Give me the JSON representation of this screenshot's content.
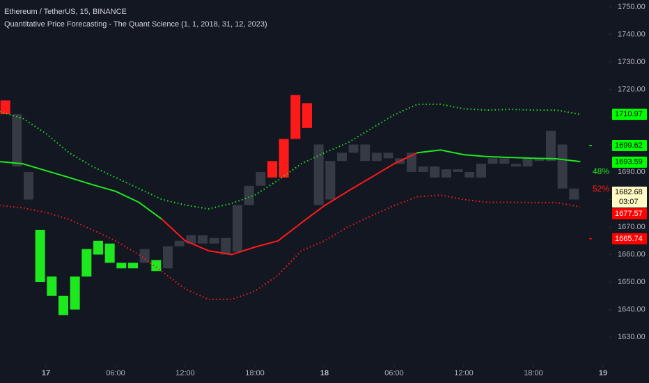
{
  "chart_data": {
    "type": "candlestick",
    "title": "Ethereum / TetherUS, 15, BINANCE",
    "subtitle": "Quantitative Price Forecasting - The Quant Science (1, 1, 2018, 31, 12, 2023)",
    "xlim": [
      -3.96,
      48.54
    ],
    "ylim": [
      1620.9,
      1752.53
    ],
    "xticks": [
      {
        "value": 0,
        "label": "17"
      },
      {
        "value": 6,
        "label": "06:00"
      },
      {
        "value": 12,
        "label": "12:00"
      },
      {
        "value": 18,
        "label": "18:00"
      },
      {
        "value": 24,
        "label": "18"
      },
      {
        "value": 30,
        "label": "06:00"
      },
      {
        "value": 36,
        "label": "12:00"
      },
      {
        "value": 42,
        "label": "18:00"
      },
      {
        "value": 48,
        "label": "19"
      }
    ],
    "yticks": [
      {
        "value": 1630,
        "label": "1630.00"
      },
      {
        "value": 1640,
        "label": "1640.00"
      },
      {
        "value": 1650,
        "label": "1650.00"
      },
      {
        "value": 1660,
        "label": "1660.00"
      },
      {
        "value": 1670,
        "label": "1670.00"
      },
      {
        "value": 1680,
        "label": "1680.00"
      },
      {
        "value": 1690,
        "label": "1690.00"
      },
      {
        "value": 1700,
        "label": "1700.00"
      },
      {
        "value": 1710,
        "label": "1710.00"
      },
      {
        "value": 1720,
        "label": "1720.00"
      },
      {
        "value": 1730,
        "label": "1730.00"
      },
      {
        "value": 1740,
        "label": "1740.00"
      },
      {
        "value": 1750,
        "label": "1750.00"
      }
    ],
    "candles": [
      {
        "x": -3.5,
        "o": 1716,
        "c": 1711,
        "color": "#ff1a1a"
      },
      {
        "x": -2.5,
        "o": 1711,
        "c": 1692,
        "color": "#363a45"
      },
      {
        "x": -1.5,
        "o": 1690,
        "c": 1680,
        "color": "#363a45"
      },
      {
        "x": -0.5,
        "o": 1669,
        "c": 1650,
        "color": "#1ee81e"
      },
      {
        "x": 0.5,
        "o": 1652,
        "c": 1645,
        "color": "#1ee81e"
      },
      {
        "x": 1.5,
        "o": 1645,
        "c": 1638,
        "color": "#1ee81e"
      },
      {
        "x": 2.5,
        "o": 1640,
        "c": 1652,
        "color": "#1ee81e"
      },
      {
        "x": 3.5,
        "o": 1652,
        "c": 1662,
        "color": "#1ee81e"
      },
      {
        "x": 4.5,
        "o": 1660,
        "c": 1665,
        "color": "#1ee81e"
      },
      {
        "x": 5.5,
        "o": 1664,
        "c": 1657,
        "color": "#1ee81e"
      },
      {
        "x": 6.5,
        "o": 1657,
        "c": 1655,
        "color": "#1ee81e"
      },
      {
        "x": 7.5,
        "o": 1655,
        "c": 1657,
        "color": "#1ee81e"
      },
      {
        "x": 8.5,
        "o": 1657,
        "c": 1662,
        "color": "#363a45"
      },
      {
        "x": 9.5,
        "o": 1658,
        "c": 1654,
        "color": "#1ee81e"
      },
      {
        "x": 10.5,
        "o": 1655,
        "c": 1663,
        "color": "#363a45"
      },
      {
        "x": 11.5,
        "o": 1663,
        "c": 1665,
        "color": "#363a45"
      },
      {
        "x": 12.5,
        "o": 1664,
        "c": 1667,
        "color": "#363a45"
      },
      {
        "x": 13.5,
        "o": 1667,
        "c": 1664,
        "color": "#363a45"
      },
      {
        "x": 14.5,
        "o": 1664,
        "c": 1666,
        "color": "#363a45"
      },
      {
        "x": 15.5,
        "o": 1666,
        "c": 1660,
        "color": "#363a45"
      },
      {
        "x": 16.5,
        "o": 1661,
        "c": 1678,
        "color": "#363a45"
      },
      {
        "x": 17.5,
        "o": 1678,
        "c": 1685,
        "color": "#363a45"
      },
      {
        "x": 18.5,
        "o": 1685,
        "c": 1690,
        "color": "#363a45"
      },
      {
        "x": 19.5,
        "o": 1694,
        "c": 1688,
        "color": "#ff1a1a"
      },
      {
        "x": 20.5,
        "o": 1688,
        "c": 1702,
        "color": "#ff1a1a"
      },
      {
        "x": 21.5,
        "o": 1702,
        "c": 1718,
        "color": "#ff1a1a"
      },
      {
        "x": 22.5,
        "o": 1715,
        "c": 1706,
        "color": "#ff1a1a"
      },
      {
        "x": 23.5,
        "o": 1700,
        "c": 1678,
        "color": "#363a45"
      },
      {
        "x": 24.5,
        "o": 1680,
        "c": 1694,
        "color": "#363a45"
      },
      {
        "x": 25.5,
        "o": 1694,
        "c": 1697,
        "color": "#363a45"
      },
      {
        "x": 26.5,
        "o": 1697,
        "c": 1700,
        "color": "#363a45"
      },
      {
        "x": 27.5,
        "o": 1700,
        "c": 1694,
        "color": "#363a45"
      },
      {
        "x": 28.5,
        "o": 1694,
        "c": 1697,
        "color": "#363a45"
      },
      {
        "x": 29.5,
        "o": 1697,
        "c": 1695,
        "color": "#363a45"
      },
      {
        "x": 30.5,
        "o": 1695,
        "c": 1693,
        "color": "#363a45"
      },
      {
        "x": 31.5,
        "o": 1697,
        "c": 1690,
        "color": "#363a45"
      },
      {
        "x": 32.5,
        "o": 1690,
        "c": 1692,
        "color": "#363a45"
      },
      {
        "x": 33.5,
        "o": 1692,
        "c": 1688,
        "color": "#363a45"
      },
      {
        "x": 34.5,
        "o": 1688,
        "c": 1691,
        "color": "#363a45"
      },
      {
        "x": 35.5,
        "o": 1691,
        "c": 1690,
        "color": "#363a45"
      },
      {
        "x": 36.5,
        "o": 1690,
        "c": 1688,
        "color": "#363a45"
      },
      {
        "x": 37.5,
        "o": 1688,
        "c": 1693,
        "color": "#363a45"
      },
      {
        "x": 38.5,
        "o": 1693,
        "c": 1695,
        "color": "#363a45"
      },
      {
        "x": 39.5,
        "o": 1695,
        "c": 1693,
        "color": "#363a45"
      },
      {
        "x": 40.5,
        "o": 1693,
        "c": 1692,
        "color": "#363a45"
      },
      {
        "x": 41.5,
        "o": 1692,
        "c": 1695,
        "color": "#363a45"
      },
      {
        "x": 42.5,
        "o": 1695,
        "c": 1694,
        "color": "#363a45"
      },
      {
        "x": 43.5,
        "o": 1694,
        "c": 1705,
        "color": "#363a45"
      },
      {
        "x": 44.5,
        "o": 1700,
        "c": 1684,
        "color": "#363a45"
      },
      {
        "x": 45.5,
        "o": 1684,
        "c": 1680,
        "color": "#363a45"
      }
    ],
    "x": [
      -4,
      -2,
      0,
      2,
      4,
      6,
      8,
      10,
      12,
      14,
      16,
      18,
      20,
      22,
      24,
      26,
      28,
      30,
      32,
      34,
      36,
      38,
      40,
      42,
      44,
      46
    ],
    "series": [
      {
        "color": "#1ee81e",
        "style": "dotted",
        "values": [
          1712,
          1709.5,
          1704,
          1697,
          1692,
          1688,
          1684,
          1680,
          1678,
          1676.6,
          1678.6,
          1681.6,
          1687,
          1693,
          1697,
          1700.6,
          1705.7,
          1710.8,
          1714.6,
          1714.6,
          1713,
          1712.5,
          1712.8,
          1712.5,
          1712.5,
          1711
        ]
      },
      {
        "color": "#1ee81e",
        "style": "solid",
        "segment_colors": [
          "#1ee81e",
          "#1ee81e",
          "#1ee81e",
          "#1ee81e",
          "#1ee81e",
          "#1ee81e",
          "#1ee81e",
          "#ff1a1a",
          "#ff1a1a",
          "#ff1a1a",
          "#ff1a1a",
          "#ff1a1a",
          "#ff1a1a",
          "#ff1a1a",
          "#ff1a1a",
          "#ff1a1a",
          "#ff1a1a",
          "#ff1a1a",
          "#1ee81e",
          "#1ee81e",
          "#1ee81e",
          "#1ee81e",
          "#1ee81e",
          "#1ee81e",
          "#1ee81e"
        ],
        "values": [
          1693.8,
          1693,
          1690.5,
          1688,
          1685.4,
          1683,
          1679,
          1672.8,
          1665,
          1661.4,
          1660,
          1662.7,
          1665,
          1671.5,
          1677.8,
          1683,
          1688,
          1693,
          1697,
          1698,
          1696.3,
          1695.6,
          1695.3,
          1695,
          1694.8,
          1693.8
        ]
      },
      {
        "color": "#ff1a1a",
        "style": "dotted",
        "values": [
          1677.8,
          1677,
          1675.3,
          1672.8,
          1669,
          1665,
          1660,
          1653.8,
          1647.5,
          1643.7,
          1643.7,
          1646.7,
          1652.5,
          1661.4,
          1665,
          1670,
          1674,
          1677.8,
          1681,
          1681.6,
          1680,
          1679,
          1679,
          1678.9,
          1678.9,
          1677.3
        ]
      }
    ],
    "price_labels": [
      {
        "value": 1710.97,
        "color": "#00ff00",
        "text_color": "#000000"
      },
      {
        "value": 1699.62,
        "color": "#00ff00",
        "text_color": "#000000",
        "marker": true
      },
      {
        "value": 1693.59,
        "color": "#00ff00",
        "text_color": "#000000"
      },
      {
        "value": 1682.68,
        "color": "#fff9c4",
        "text_color": "#000000",
        "countdown": "03:07"
      },
      {
        "value": 1677.57,
        "color": "#ff0000",
        "text_color": "#ffffff"
      },
      {
        "value": 1665.74,
        "color": "#ff0000",
        "text_color": "#ffffff",
        "marker": true
      }
    ],
    "annotations": [
      {
        "text": "48%",
        "color": "#1ee81e"
      },
      {
        "text": "52%",
        "color": "#ff1a1a"
      }
    ]
  }
}
